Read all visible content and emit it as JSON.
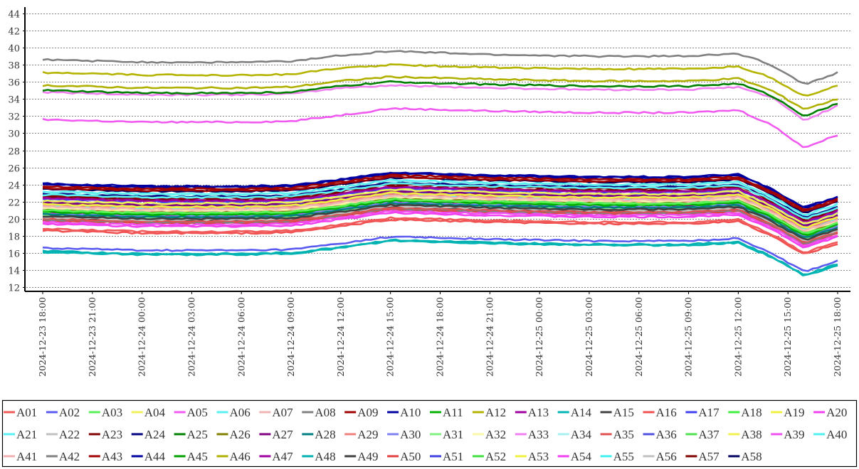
{
  "chart_data": {
    "type": "line",
    "title": "",
    "xlabel": "",
    "ylabel": "",
    "ylim": [
      12,
      44
    ],
    "yticks": [
      12,
      14,
      16,
      18,
      20,
      22,
      24,
      26,
      28,
      30,
      32,
      34,
      36,
      38,
      40,
      42,
      44
    ],
    "grid": true,
    "legend_position": "bottom",
    "xtick_labels": [
      "2024-12-23  18:00",
      "2024-12-23  21:00",
      "2024-12-24  00:00",
      "2024-12-24  03:00",
      "2024-12-24  06:00",
      "2024-12-24  09:00",
      "2024-12-24  12:00",
      "2024-12-24  15:00",
      "2024-12-24  18:00",
      "2024-12-24  21:00",
      "2024-12-25  00:00",
      "2024-12-25  03:00",
      "2024-12-25  06:00",
      "2024-12-25  09:00",
      "2024-12-25  12:00",
      "2024-12-25  15:00",
      "2024-12-25  18:00"
    ],
    "x": [
      "2024-12-23 18:00",
      "2024-12-24 00:00",
      "2024-12-24 06:00",
      "2024-12-24 09:00",
      "2024-12-24 12:00",
      "2024-12-24 15:00",
      "2024-12-24 21:00",
      "2024-12-25 03:00",
      "2024-12-25 09:00",
      "2024-12-25 12:00",
      "2024-12-25 14:00",
      "2024-12-25 16:00",
      "2024-12-25 18:00"
    ],
    "series": [
      {
        "name": "A01",
        "color": "#f05a5a",
        "values": [
          18.8,
          18.5,
          18.5,
          18.6,
          19.3,
          20.1,
          19.8,
          19.6,
          19.6,
          19.9,
          18.2,
          16.0,
          17.3
        ]
      },
      {
        "name": "A02",
        "color": "#5a5af0",
        "values": [
          16.6,
          16.3,
          16.3,
          16.4,
          17.1,
          17.9,
          17.6,
          17.4,
          17.4,
          17.7,
          16.0,
          13.8,
          15.1
        ]
      },
      {
        "name": "A03",
        "color": "#5af05a",
        "values": [
          21.0,
          20.7,
          20.7,
          20.8,
          21.5,
          22.3,
          22.0,
          21.8,
          21.8,
          22.1,
          20.4,
          18.2,
          19.5
        ]
      },
      {
        "name": "A04",
        "color": "#f0f05a",
        "values": [
          22.1,
          21.8,
          21.8,
          21.9,
          22.6,
          23.4,
          23.1,
          22.9,
          22.9,
          23.2,
          21.5,
          19.3,
          20.6
        ]
      },
      {
        "name": "A05",
        "color": "#f05af0",
        "values": [
          31.6,
          31.3,
          31.3,
          31.4,
          32.1,
          32.9,
          32.6,
          32.4,
          32.4,
          32.7,
          31.0,
          28.3,
          29.8
        ]
      },
      {
        "name": "A06",
        "color": "#5af0f0",
        "values": [
          23.2,
          22.9,
          22.9,
          23.0,
          23.7,
          24.5,
          24.2,
          24.0,
          24.0,
          24.3,
          22.6,
          20.4,
          21.7
        ]
      },
      {
        "name": "A07",
        "color": "#f0b4b4",
        "values": [
          21.4,
          21.1,
          21.1,
          21.2,
          21.9,
          22.7,
          22.4,
          22.2,
          22.2,
          22.5,
          20.8,
          18.6,
          19.9
        ]
      },
      {
        "name": "A08",
        "color": "#808080",
        "values": [
          38.6,
          38.3,
          38.3,
          38.4,
          39.1,
          39.6,
          39.2,
          39.0,
          39.0,
          39.3,
          38.0,
          35.7,
          37.1
        ]
      },
      {
        "name": "A09",
        "color": "#a00000",
        "values": [
          23.8,
          23.5,
          23.5,
          23.6,
          24.3,
          25.1,
          24.8,
          24.6,
          24.6,
          24.9,
          23.2,
          21.0,
          22.3
        ]
      },
      {
        "name": "A10",
        "color": "#0000a0",
        "values": [
          24.1,
          23.8,
          23.8,
          23.9,
          24.6,
          25.4,
          25.1,
          24.9,
          24.9,
          25.2,
          23.5,
          21.3,
          22.6
        ]
      },
      {
        "name": "A11",
        "color": "#00b000",
        "values": [
          20.8,
          20.5,
          20.5,
          20.6,
          21.3,
          22.1,
          21.8,
          21.6,
          21.6,
          21.9,
          20.2,
          18.0,
          19.3
        ]
      },
      {
        "name": "A12",
        "color": "#b4b400",
        "values": [
          37.1,
          36.8,
          36.8,
          36.9,
          37.6,
          38.0,
          37.7,
          37.5,
          37.5,
          37.8,
          36.5,
          34.3,
          35.6
        ]
      },
      {
        "name": "A13",
        "color": "#a000a0",
        "values": [
          22.4,
          22.1,
          22.1,
          22.2,
          22.9,
          23.7,
          23.4,
          23.2,
          23.2,
          23.5,
          21.8,
          19.6,
          20.9
        ]
      },
      {
        "name": "A14",
        "color": "#00b4b4",
        "values": [
          16.1,
          15.8,
          15.8,
          15.9,
          16.6,
          17.4,
          17.1,
          16.9,
          16.9,
          17.2,
          15.5,
          13.3,
          14.6
        ]
      },
      {
        "name": "A15",
        "color": "#404040",
        "values": [
          20.3,
          20.0,
          20.0,
          20.1,
          20.8,
          21.6,
          21.3,
          21.1,
          21.1,
          21.4,
          19.7,
          17.5,
          18.8
        ]
      },
      {
        "name": "A16",
        "color": "#f05050",
        "values": [
          18.6,
          18.3,
          18.3,
          18.4,
          19.1,
          19.9,
          19.6,
          19.4,
          19.4,
          19.7,
          18.0,
          15.8,
          17.1
        ]
      },
      {
        "name": "A17",
        "color": "#4040f0",
        "values": [
          22.3,
          22.0,
          22.0,
          22.1,
          22.8,
          23.6,
          23.3,
          23.1,
          23.1,
          23.4,
          21.7,
          19.5,
          20.8
        ]
      },
      {
        "name": "A18",
        "color": "#40f040",
        "values": [
          20.9,
          20.6,
          20.6,
          20.7,
          21.4,
          22.2,
          21.9,
          21.7,
          21.7,
          22.0,
          20.3,
          18.1,
          19.4
        ]
      },
      {
        "name": "A19",
        "color": "#f0f040",
        "values": [
          21.7,
          21.4,
          21.4,
          21.5,
          22.2,
          23.0,
          22.7,
          22.5,
          22.5,
          22.8,
          21.1,
          18.9,
          20.2
        ]
      },
      {
        "name": "A20",
        "color": "#f040f0",
        "values": [
          19.4,
          19.1,
          19.1,
          19.2,
          19.9,
          20.7,
          20.4,
          20.2,
          20.2,
          20.5,
          18.8,
          16.6,
          17.9
        ]
      },
      {
        "name": "A21",
        "color": "#5af0f0",
        "values": [
          22.8,
          22.5,
          22.5,
          22.6,
          23.3,
          24.1,
          23.8,
          23.6,
          23.6,
          23.9,
          22.2,
          20.0,
          21.3
        ]
      },
      {
        "name": "A22",
        "color": "#c0c0c0",
        "values": [
          20.2,
          19.9,
          19.9,
          20.0,
          20.7,
          21.5,
          21.2,
          21.0,
          21.0,
          21.3,
          19.6,
          17.4,
          18.7
        ]
      },
      {
        "name": "A23",
        "color": "#800000",
        "values": [
          22.7,
          22.4,
          22.4,
          22.5,
          23.2,
          24.0,
          23.7,
          23.5,
          23.5,
          23.8,
          22.1,
          19.9,
          21.2
        ]
      },
      {
        "name": "A24",
        "color": "#000080",
        "values": [
          22.9,
          22.6,
          22.6,
          22.7,
          23.4,
          24.2,
          23.9,
          23.7,
          23.7,
          24.0,
          22.3,
          20.1,
          21.4
        ]
      },
      {
        "name": "A25",
        "color": "#008000",
        "values": [
          35.0,
          34.7,
          34.7,
          34.8,
          35.5,
          36.0,
          35.7,
          35.5,
          35.5,
          35.8,
          34.4,
          32.0,
          33.5
        ]
      },
      {
        "name": "A26",
        "color": "#808000",
        "values": [
          21.0,
          20.7,
          20.7,
          20.8,
          21.5,
          22.3,
          22.0,
          21.8,
          21.8,
          22.1,
          20.4,
          18.2,
          19.5
        ]
      },
      {
        "name": "A27",
        "color": "#800080",
        "values": [
          21.9,
          21.6,
          21.6,
          21.7,
          22.4,
          23.2,
          22.9,
          22.7,
          22.7,
          23.0,
          21.3,
          19.1,
          20.4
        ]
      },
      {
        "name": "A28",
        "color": "#008080",
        "values": [
          20.5,
          20.2,
          20.2,
          20.3,
          21.0,
          21.8,
          21.5,
          21.3,
          21.3,
          21.6,
          19.9,
          17.7,
          19.0
        ]
      },
      {
        "name": "A29",
        "color": "#f08080",
        "values": [
          21.6,
          21.3,
          21.3,
          21.4,
          22.1,
          22.9,
          22.6,
          22.4,
          22.4,
          22.7,
          21.0,
          18.8,
          20.1
        ]
      },
      {
        "name": "A30",
        "color": "#8080f0",
        "values": [
          20.6,
          20.3,
          20.3,
          20.4,
          21.1,
          21.9,
          21.6,
          21.4,
          21.4,
          21.7,
          20.0,
          17.8,
          19.1
        ]
      },
      {
        "name": "A31",
        "color": "#80f080",
        "values": [
          20.4,
          20.1,
          20.1,
          20.2,
          20.9,
          21.7,
          21.4,
          21.2,
          21.2,
          21.5,
          19.8,
          17.6,
          18.9
        ]
      },
      {
        "name": "A32",
        "color": "#f8f8a8",
        "values": [
          21.3,
          21.0,
          21.0,
          21.1,
          21.8,
          22.6,
          22.3,
          22.1,
          22.1,
          22.4,
          20.7,
          18.5,
          19.8
        ]
      },
      {
        "name": "A33",
        "color": "#f080f0",
        "values": [
          34.8,
          34.5,
          34.5,
          34.6,
          35.3,
          35.6,
          35.3,
          35.1,
          35.1,
          35.4,
          34.2,
          31.5,
          33.2
        ]
      },
      {
        "name": "A34",
        "color": "#a8f0f0",
        "values": [
          23.0,
          22.7,
          22.7,
          22.8,
          23.5,
          24.3,
          24.0,
          23.8,
          23.8,
          24.1,
          22.4,
          20.2,
          21.5
        ]
      },
      {
        "name": "A35",
        "color": "#e05050",
        "values": [
          20.0,
          19.7,
          19.7,
          19.8,
          20.5,
          21.3,
          21.0,
          20.8,
          20.8,
          21.1,
          19.4,
          17.2,
          18.5
        ]
      },
      {
        "name": "A36",
        "color": "#5050e0",
        "values": [
          22.0,
          21.7,
          21.7,
          21.8,
          22.5,
          23.3,
          23.0,
          22.8,
          22.8,
          23.1,
          21.4,
          19.2,
          20.5
        ]
      },
      {
        "name": "A37",
        "color": "#50e050",
        "values": [
          20.8,
          20.5,
          20.5,
          20.6,
          21.3,
          22.1,
          21.8,
          21.6,
          21.6,
          21.9,
          20.2,
          18.0,
          19.3
        ]
      },
      {
        "name": "A38",
        "color": "#f0f050",
        "values": [
          20.9,
          20.6,
          20.6,
          20.7,
          21.4,
          22.2,
          21.9,
          21.7,
          21.7,
          22.0,
          20.3,
          18.1,
          19.4
        ]
      },
      {
        "name": "A39",
        "color": "#f050f0",
        "values": [
          19.6,
          19.3,
          19.3,
          19.4,
          20.1,
          20.9,
          20.6,
          20.4,
          20.4,
          20.7,
          19.0,
          16.8,
          18.1
        ]
      },
      {
        "name": "A40",
        "color": "#50f0f0",
        "values": [
          21.5,
          21.2,
          21.2,
          21.3,
          22.0,
          22.8,
          22.5,
          22.3,
          22.3,
          22.6,
          20.9,
          18.7,
          20.0
        ]
      },
      {
        "name": "A41",
        "color": "#f0b0b0",
        "values": [
          21.2,
          20.9,
          20.9,
          21.0,
          21.7,
          22.5,
          22.2,
          22.0,
          22.0,
          22.3,
          20.6,
          18.4,
          19.7
        ]
      },
      {
        "name": "A42",
        "color": "#808080",
        "values": [
          19.9,
          19.6,
          19.6,
          19.7,
          20.4,
          21.2,
          20.9,
          20.7,
          20.7,
          21.0,
          19.3,
          17.1,
          18.4
        ]
      },
      {
        "name": "A43",
        "color": "#a00000",
        "values": [
          23.6,
          23.3,
          23.3,
          23.4,
          24.1,
          24.9,
          24.6,
          24.4,
          24.4,
          24.7,
          23.0,
          20.8,
          22.1
        ]
      },
      {
        "name": "A44",
        "color": "#0000a0",
        "values": [
          24.0,
          23.7,
          23.7,
          23.8,
          24.5,
          25.3,
          25.0,
          24.8,
          24.8,
          25.1,
          23.4,
          21.2,
          22.5
        ]
      },
      {
        "name": "A45",
        "color": "#00a000",
        "values": [
          20.5,
          20.2,
          20.2,
          20.3,
          21.0,
          21.8,
          21.5,
          21.3,
          21.3,
          21.6,
          19.9,
          17.7,
          19.0
        ]
      },
      {
        "name": "A46",
        "color": "#b0b000",
        "values": [
          35.6,
          35.3,
          35.3,
          35.4,
          36.1,
          36.6,
          36.3,
          36.1,
          36.1,
          36.4,
          35.0,
          32.8,
          34.0
        ]
      },
      {
        "name": "A47",
        "color": "#a000a0",
        "values": [
          20.7,
          20.4,
          20.4,
          20.5,
          21.2,
          22.0,
          21.7,
          21.5,
          21.5,
          21.8,
          20.1,
          17.9,
          19.2
        ]
      },
      {
        "name": "A48",
        "color": "#00b0b0",
        "values": [
          16.2,
          15.9,
          15.9,
          16.0,
          16.7,
          17.5,
          17.2,
          17.0,
          17.0,
          17.3,
          15.6,
          13.4,
          14.7
        ]
      },
      {
        "name": "A49",
        "color": "#404040",
        "values": [
          20.1,
          19.8,
          19.8,
          19.9,
          20.6,
          21.4,
          21.1,
          20.9,
          20.9,
          21.2,
          19.5,
          17.3,
          18.6
        ]
      },
      {
        "name": "A50",
        "color": "#e04040",
        "values": [
          19.8,
          19.5,
          19.5,
          19.6,
          20.3,
          21.1,
          20.8,
          20.6,
          20.6,
          20.9,
          19.2,
          17.0,
          18.3
        ]
      },
      {
        "name": "A51",
        "color": "#4040e0",
        "values": [
          21.8,
          21.5,
          21.5,
          21.6,
          22.3,
          23.1,
          22.8,
          22.6,
          22.6,
          22.9,
          21.2,
          19.0,
          20.3
        ]
      },
      {
        "name": "A52",
        "color": "#40e040",
        "values": [
          20.7,
          20.4,
          20.4,
          20.5,
          21.2,
          22.0,
          21.7,
          21.5,
          21.5,
          21.8,
          20.1,
          17.9,
          19.2
        ]
      },
      {
        "name": "A53",
        "color": "#f0f040",
        "values": [
          21.1,
          20.8,
          20.8,
          20.9,
          21.6,
          22.4,
          22.1,
          21.9,
          21.9,
          22.2,
          20.5,
          18.3,
          19.6
        ]
      },
      {
        "name": "A54",
        "color": "#f040f0",
        "values": [
          19.8,
          19.5,
          19.5,
          19.6,
          20.3,
          21.1,
          20.8,
          20.6,
          20.6,
          20.9,
          19.2,
          17.0,
          18.3
        ]
      },
      {
        "name": "A55",
        "color": "#40f0f0",
        "values": [
          21.9,
          21.6,
          21.6,
          21.7,
          22.4,
          23.2,
          22.9,
          22.7,
          22.7,
          23.0,
          21.3,
          19.1,
          20.4
        ]
      },
      {
        "name": "A56",
        "color": "#c0c0c0",
        "values": [
          20.4,
          20.1,
          20.1,
          20.2,
          20.9,
          21.7,
          21.4,
          21.2,
          21.2,
          21.5,
          19.8,
          17.6,
          18.9
        ]
      },
      {
        "name": "A57",
        "color": "#800000",
        "values": [
          22.5,
          22.2,
          22.2,
          22.3,
          23.0,
          23.8,
          23.5,
          23.3,
          23.3,
          23.6,
          21.9,
          19.7,
          21.0
        ]
      },
      {
        "name": "A58",
        "color": "#000060",
        "values": [
          23.5,
          23.2,
          23.2,
          23.3,
          24.0,
          24.8,
          24.5,
          24.3,
          24.3,
          24.6,
          22.9,
          20.7,
          22.0
        ]
      }
    ]
  }
}
